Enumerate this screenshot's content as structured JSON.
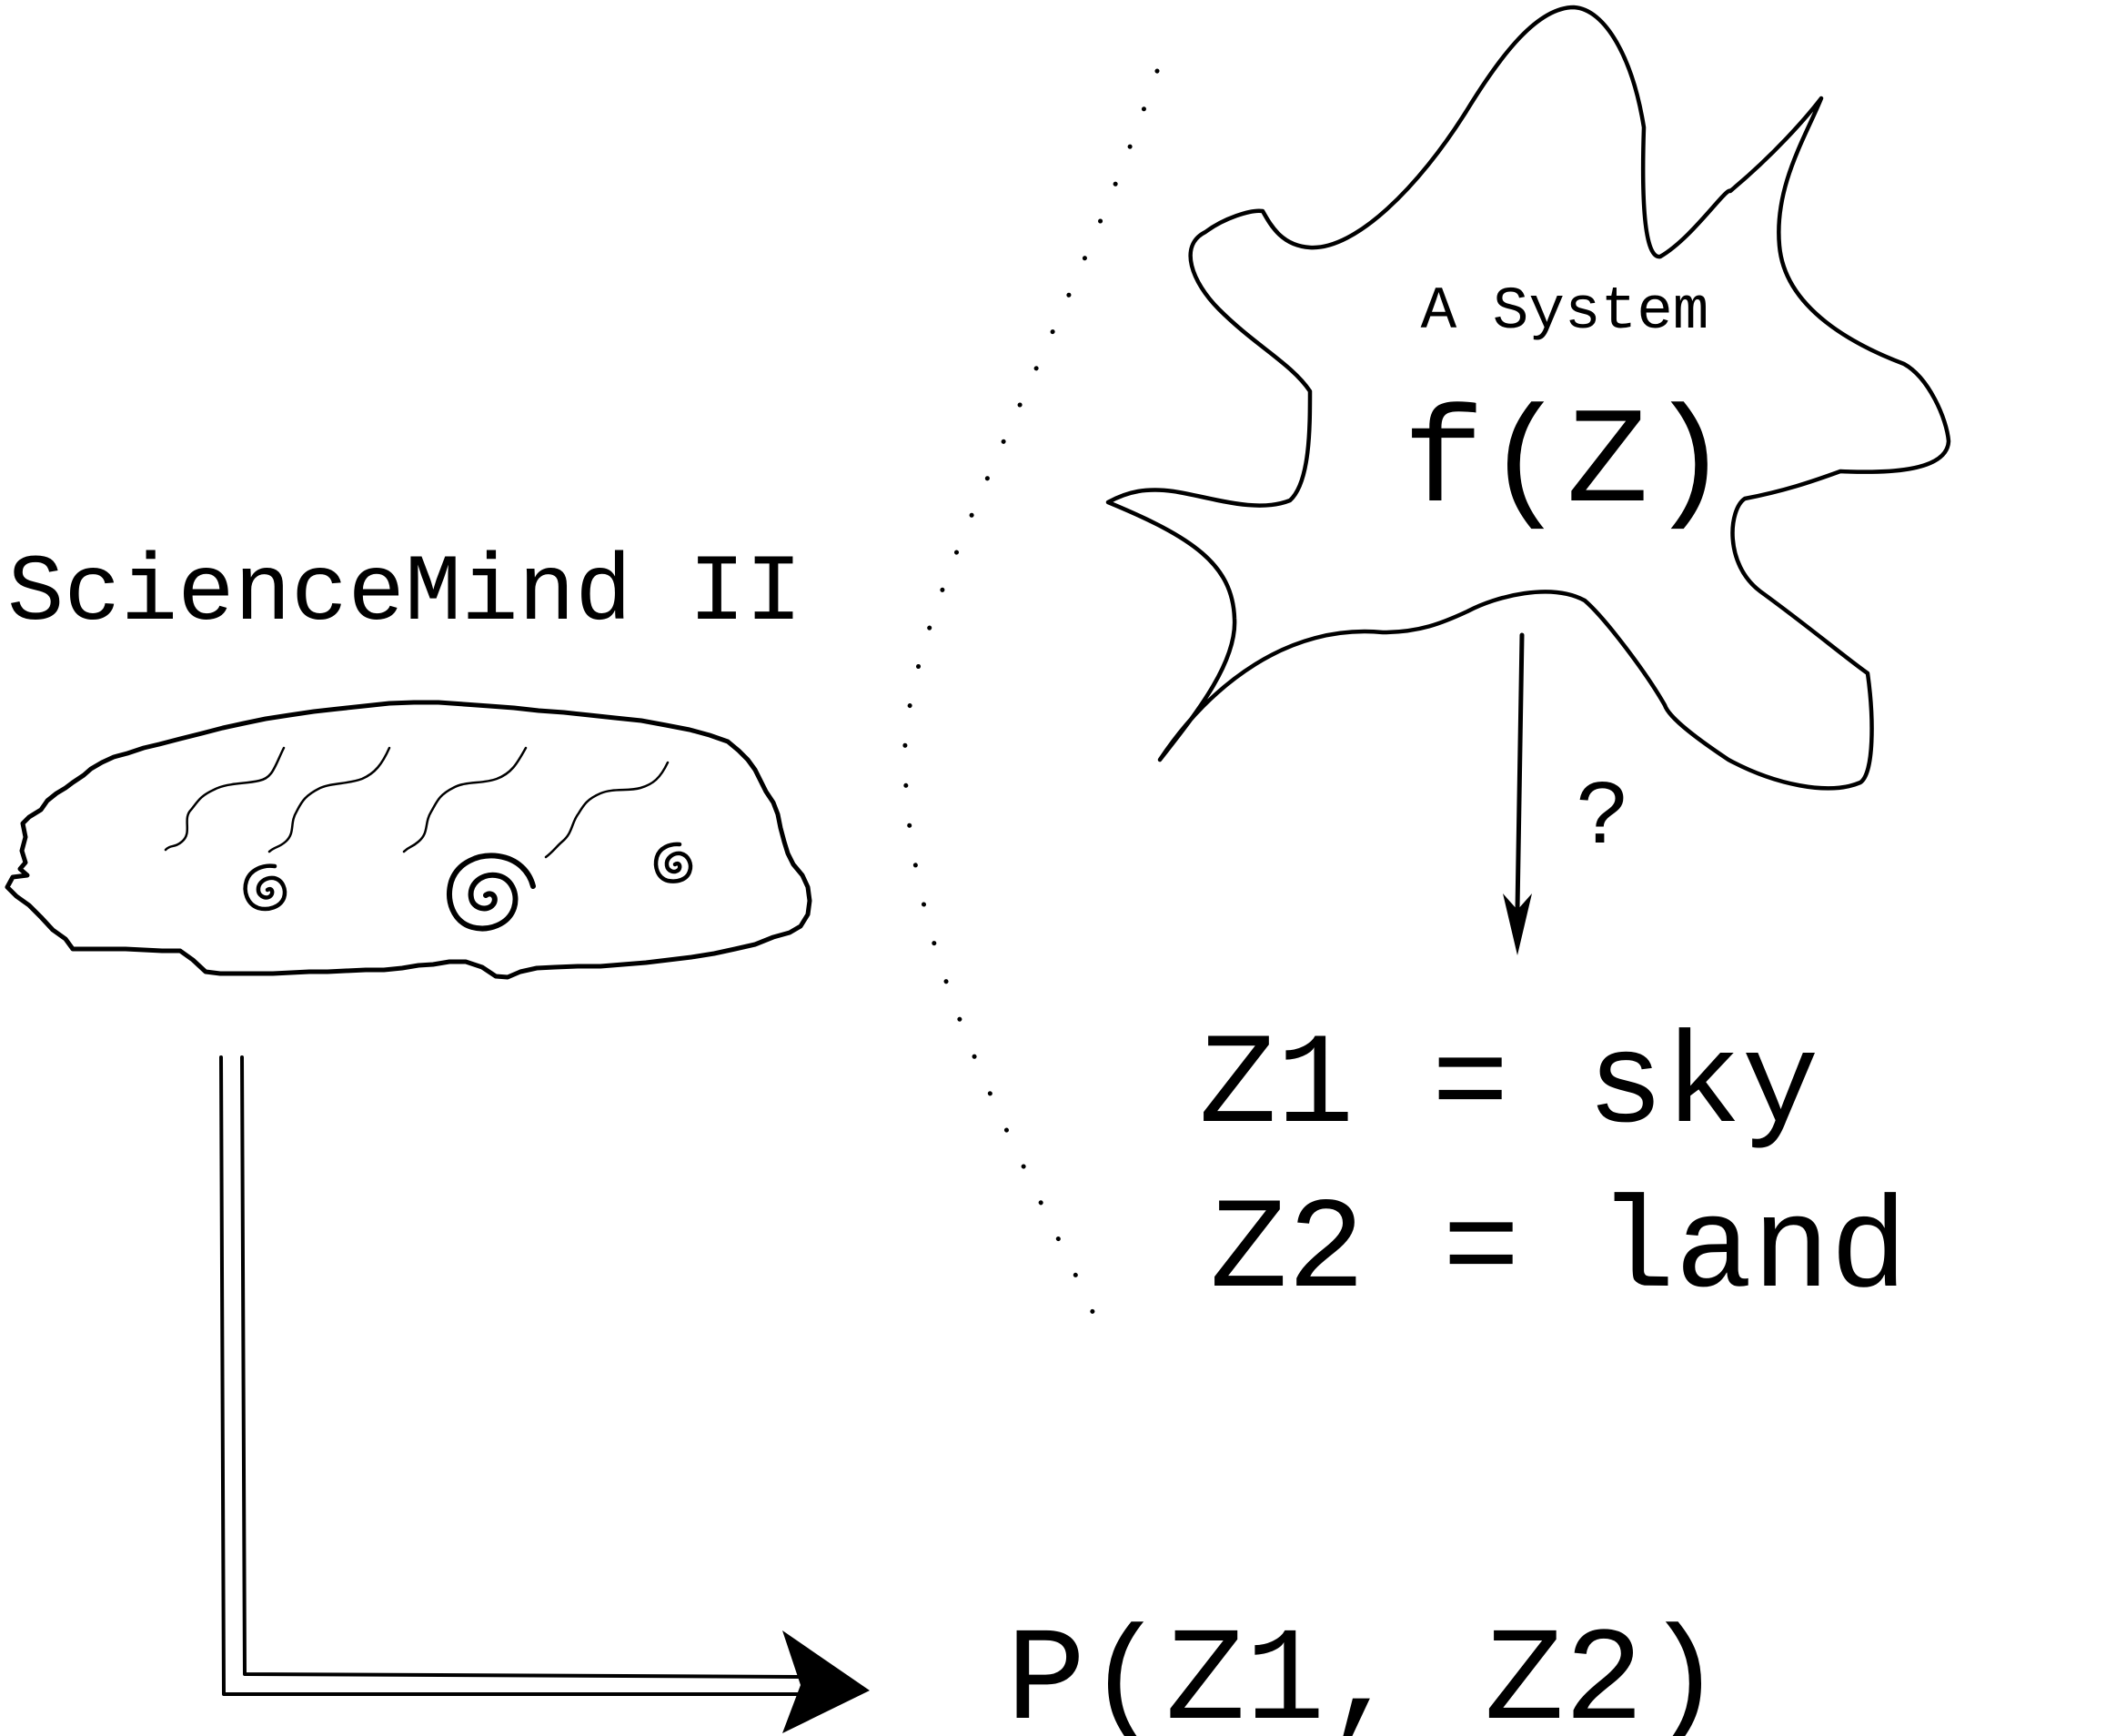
{
  "labels": {
    "brain_title": "ScienceMind II",
    "system_title": "A System",
    "system_function": "f(Z)",
    "question_mark": "?",
    "z1_assignment": "Z1 = sky",
    "z2_assignment": "Z2 = land",
    "output_probability": "P(Z1, Z2)"
  },
  "icons": {
    "brain": "brain-icon",
    "system_blob": "cloud-blob-icon",
    "spiral": "spiral-icon",
    "arrow_down": "arrow-down-icon",
    "arrow_right": "double-line-arrow-right-icon"
  },
  "colors": {
    "ink": "#000000",
    "background": "#ffffff"
  }
}
